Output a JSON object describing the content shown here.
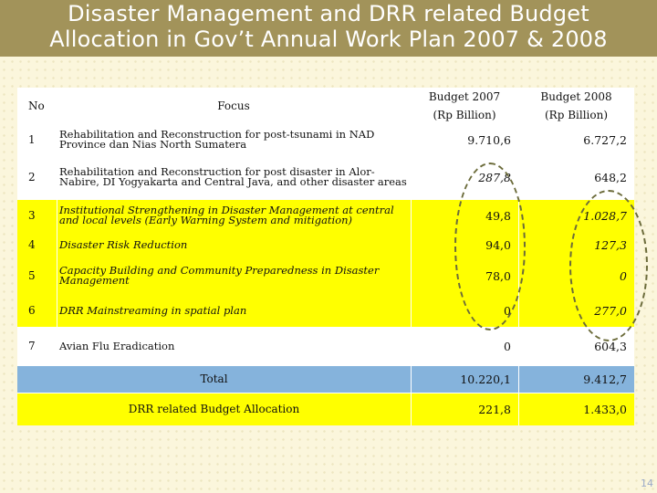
{
  "slide": {
    "title_line1": "Disaster Management and DRR related Budget",
    "title_line2": "Allocation in Gov’t Annual Work Plan 2007 & 2008",
    "page_number": "14"
  },
  "table": {
    "headers": {
      "no": "No",
      "focus": "Focus",
      "budget2007_line1": "Budget 2007",
      "budget2007_line2": "(Rp Billion)",
      "budget2008_line1": "Budget  2008",
      "budget2008_line2": "(Rp Billion)"
    },
    "rows": [
      {
        "no": "1",
        "focus": "Rehabilitation and Reconstruction for post-tsunami in NAD Province dan Nias North Sumatera",
        "b2007": "9.710,6",
        "b2008": "6.727,2"
      },
      {
        "no": "2",
        "focus": "Rehabilitation and Reconstruction for post disaster in Alor-Nabire, DI Yogyakarta and Central Java, and other disaster areas",
        "b2007": "287,8",
        "b2008": "648,2"
      },
      {
        "no": "3",
        "focus": "Institutional Strengthening in Disaster Management at central and local levels (Early Warning System and mitigation)",
        "b2007": "49,8",
        "b2008": "1.028,7"
      },
      {
        "no": "4",
        "focus": "Disaster Risk Reduction",
        "b2007": "94,0",
        "b2008": "127,3"
      },
      {
        "no": "5",
        "focus": "Capacity Building and Community Preparedness in Disaster Management",
        "b2007": "78,0",
        "b2008": "0"
      },
      {
        "no": "6",
        "focus": "DRR Mainstreaming in spatial plan",
        "b2007": "0",
        "b2008": "277,0"
      },
      {
        "no": "7",
        "focus": "Avian Flu Eradication",
        "b2007": "0",
        "b2008": "604,3"
      }
    ],
    "total": {
      "label": "Total",
      "b2007": "10.220,1",
      "b2008": "9.412,7"
    },
    "drr": {
      "label": "DRR related Budget Allocation",
      "b2007": "221,8",
      "b2008": "1.433,0"
    }
  },
  "colors": {
    "title_bar": "#a2935a",
    "background": "#fbf6dc",
    "highlight": "#ffff00",
    "summary": "#85b3dc"
  }
}
